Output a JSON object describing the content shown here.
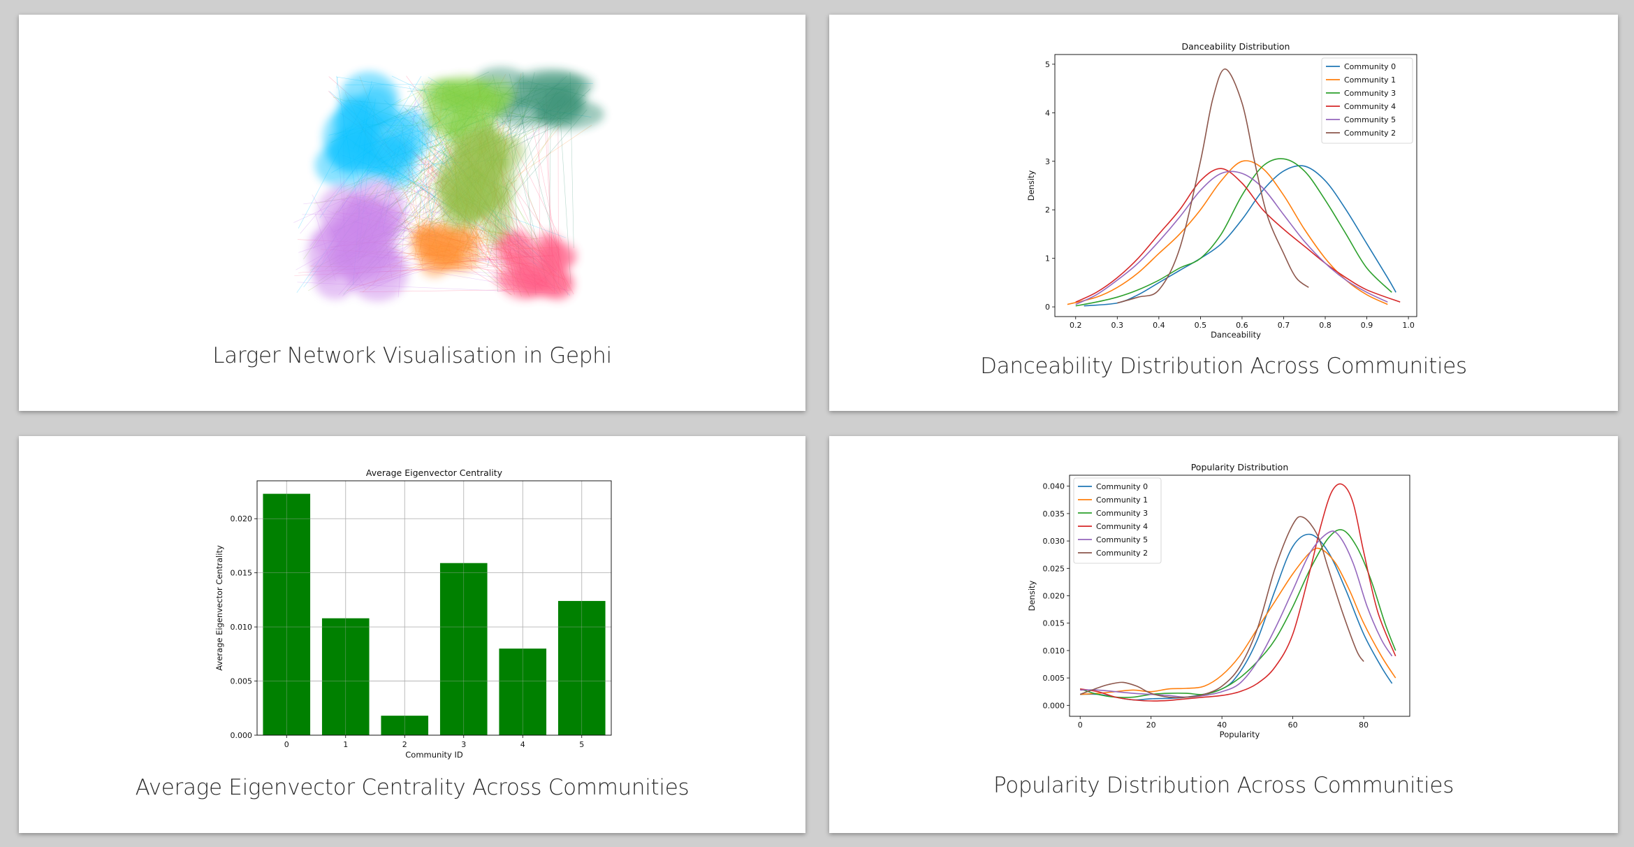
{
  "slides": {
    "network": {
      "caption": "Larger Network Visualisation in Gephi"
    },
    "danceability": {
      "caption": "Danceability Distribution Across Communities"
    },
    "eigen": {
      "caption": "Average Eigenvector Centrality Across Communities"
    },
    "popularity": {
      "caption": "Popularity Distribution Across Communities"
    }
  },
  "colors": {
    "c0": "#1f77b4",
    "c1": "#ff7f0e",
    "c3": "#2ca02c",
    "c4": "#d62728",
    "c5": "#9467bd",
    "c2": "#8c564b",
    "bar": "#008000"
  },
  "chart_data": [
    {
      "id": "danceability",
      "type": "line",
      "title": "Danceability Distribution",
      "xlabel": "Danceability",
      "ylabel": "Density",
      "xlim": [
        0.15,
        1.02
      ],
      "ylim": [
        -0.2,
        5.2
      ],
      "xticks": [
        0.2,
        0.3,
        0.4,
        0.5,
        0.6,
        0.7,
        0.8,
        0.9,
        1.0
      ],
      "xticklabels": [
        "0.2",
        "0.3",
        "0.4",
        "0.5",
        "0.6",
        "0.7",
        "0.8",
        "0.9",
        "1.0"
      ],
      "yticks": [
        0,
        1,
        2,
        3,
        4,
        5
      ],
      "yticklabels": [
        "0",
        "1",
        "2",
        "3",
        "4",
        "5"
      ],
      "grid": false,
      "legend_position": "top-right",
      "series": [
        {
          "name": "Community 0",
          "color": "#1f77b4",
          "x": [
            0.22,
            0.3,
            0.35,
            0.4,
            0.45,
            0.5,
            0.55,
            0.6,
            0.65,
            0.7,
            0.75,
            0.8,
            0.85,
            0.9,
            0.95,
            0.97
          ],
          "y": [
            0.02,
            0.08,
            0.25,
            0.5,
            0.75,
            1.0,
            1.3,
            1.8,
            2.4,
            2.8,
            2.9,
            2.6,
            2.0,
            1.3,
            0.6,
            0.3
          ]
        },
        {
          "name": "Community 1",
          "color": "#ff7f0e",
          "x": [
            0.18,
            0.25,
            0.3,
            0.35,
            0.4,
            0.45,
            0.5,
            0.55,
            0.6,
            0.65,
            0.7,
            0.75,
            0.8,
            0.85,
            0.9,
            0.95
          ],
          "y": [
            0.05,
            0.2,
            0.4,
            0.7,
            1.1,
            1.5,
            2.0,
            2.6,
            3.0,
            2.85,
            2.3,
            1.6,
            1.0,
            0.55,
            0.25,
            0.05
          ]
        },
        {
          "name": "Community 3",
          "color": "#2ca02c",
          "x": [
            0.2,
            0.25,
            0.3,
            0.35,
            0.4,
            0.45,
            0.5,
            0.55,
            0.6,
            0.65,
            0.7,
            0.75,
            0.8,
            0.85,
            0.9,
            0.96
          ],
          "y": [
            0.02,
            0.1,
            0.2,
            0.35,
            0.55,
            0.8,
            1.0,
            1.5,
            2.3,
            2.9,
            3.05,
            2.8,
            2.2,
            1.5,
            0.8,
            0.3
          ]
        },
        {
          "name": "Community 4",
          "color": "#d62728",
          "x": [
            0.2,
            0.25,
            0.3,
            0.35,
            0.4,
            0.45,
            0.5,
            0.55,
            0.6,
            0.65,
            0.7,
            0.75,
            0.8,
            0.85,
            0.9,
            0.98
          ],
          "y": [
            0.1,
            0.3,
            0.6,
            1.0,
            1.5,
            2.0,
            2.6,
            2.85,
            2.55,
            2.0,
            1.6,
            1.25,
            0.9,
            0.6,
            0.35,
            0.1
          ]
        },
        {
          "name": "Community 5",
          "color": "#9467bd",
          "x": [
            0.2,
            0.25,
            0.3,
            0.35,
            0.4,
            0.45,
            0.5,
            0.55,
            0.6,
            0.65,
            0.7,
            0.75,
            0.8,
            0.85,
            0.9,
            0.95
          ],
          "y": [
            0.05,
            0.25,
            0.55,
            0.9,
            1.35,
            1.85,
            2.4,
            2.75,
            2.75,
            2.45,
            1.9,
            1.35,
            0.9,
            0.55,
            0.3,
            0.1
          ]
        },
        {
          "name": "Community 2",
          "color": "#8c564b",
          "x": [
            0.3,
            0.35,
            0.4,
            0.45,
            0.5,
            0.53,
            0.56,
            0.6,
            0.63,
            0.66,
            0.7,
            0.73,
            0.76
          ],
          "y": [
            0.08,
            0.2,
            0.35,
            1.2,
            3.0,
            4.3,
            4.9,
            4.2,
            3.0,
            1.9,
            1.1,
            0.6,
            0.4
          ]
        }
      ]
    },
    {
      "id": "eigen",
      "type": "bar",
      "title": "Average Eigenvector Centrality",
      "xlabel": "Community ID",
      "ylabel": "Average Eigenvector Centrality",
      "categories": [
        "0",
        "1",
        "2",
        "3",
        "4",
        "5"
      ],
      "values": [
        0.0223,
        0.0108,
        0.0018,
        0.0159,
        0.008,
        0.0124
      ],
      "ylim": [
        0,
        0.0235
      ],
      "yticks": [
        0,
        0.005,
        0.01,
        0.015,
        0.02
      ],
      "yticklabels": [
        "0.000",
        "0.005",
        "0.010",
        "0.015",
        "0.020"
      ],
      "grid": true
    },
    {
      "id": "popularity",
      "type": "line",
      "title": "Popularity Distribution",
      "xlabel": "Popularity",
      "ylabel": "Density",
      "xlim": [
        -3,
        93
      ],
      "ylim": [
        -0.002,
        0.042
      ],
      "xticks": [
        0,
        20,
        40,
        60,
        80
      ],
      "xticklabels": [
        "0",
        "20",
        "40",
        "60",
        "80"
      ],
      "yticks": [
        0,
        0.005,
        0.01,
        0.015,
        0.02,
        0.025,
        0.03,
        0.035,
        0.04
      ],
      "yticklabels": [
        "0.000",
        "0.005",
        "0.010",
        "0.015",
        "0.020",
        "0.025",
        "0.030",
        "0.035",
        "0.040"
      ],
      "grid": false,
      "legend_position": "top-left",
      "series": [
        {
          "name": "Community 0",
          "color": "#1f77b4",
          "x": [
            0,
            5,
            10,
            15,
            20,
            30,
            40,
            45,
            50,
            55,
            60,
            65,
            70,
            75,
            80,
            85,
            88
          ],
          "y": [
            0.002,
            0.002,
            0.0015,
            0.001,
            0.0012,
            0.0015,
            0.003,
            0.006,
            0.012,
            0.021,
            0.029,
            0.0312,
            0.028,
            0.021,
            0.013,
            0.007,
            0.004
          ]
        },
        {
          "name": "Community 1",
          "color": "#ff7f0e",
          "x": [
            0,
            5,
            10,
            15,
            20,
            25,
            30,
            35,
            40,
            45,
            50,
            55,
            60,
            65,
            68,
            72,
            76,
            80,
            85,
            89
          ],
          "y": [
            0.002,
            0.0022,
            0.0025,
            0.0028,
            0.0025,
            0.003,
            0.0031,
            0.0035,
            0.0055,
            0.009,
            0.014,
            0.019,
            0.024,
            0.028,
            0.0285,
            0.026,
            0.021,
            0.015,
            0.009,
            0.005
          ]
        },
        {
          "name": "Community 3",
          "color": "#2ca02c",
          "x": [
            0,
            5,
            10,
            15,
            20,
            25,
            30,
            35,
            40,
            45,
            50,
            55,
            60,
            65,
            70,
            74,
            78,
            82,
            86,
            89
          ],
          "y": [
            0.003,
            0.002,
            0.0015,
            0.0015,
            0.002,
            0.0022,
            0.0022,
            0.002,
            0.003,
            0.005,
            0.008,
            0.012,
            0.018,
            0.025,
            0.0305,
            0.032,
            0.029,
            0.023,
            0.015,
            0.01
          ]
        },
        {
          "name": "Community 4",
          "color": "#d62728",
          "x": [
            0,
            5,
            10,
            15,
            20,
            25,
            30,
            35,
            40,
            45,
            50,
            55,
            60,
            65,
            68,
            71,
            74,
            77,
            80,
            84,
            89
          ],
          "y": [
            0.003,
            0.0025,
            0.0015,
            0.001,
            0.0008,
            0.0009,
            0.0012,
            0.0015,
            0.0018,
            0.0025,
            0.004,
            0.007,
            0.013,
            0.025,
            0.033,
            0.039,
            0.0403,
            0.037,
            0.028,
            0.017,
            0.009
          ]
        },
        {
          "name": "Community 5",
          "color": "#9467bd",
          "x": [
            0,
            5,
            10,
            15,
            20,
            25,
            30,
            35,
            40,
            45,
            50,
            55,
            60,
            65,
            70,
            73,
            77,
            81,
            85,
            88
          ],
          "y": [
            0.0028,
            0.0028,
            0.0025,
            0.0022,
            0.002,
            0.0018,
            0.0015,
            0.0018,
            0.0025,
            0.004,
            0.008,
            0.014,
            0.021,
            0.028,
            0.0315,
            0.031,
            0.026,
            0.018,
            0.012,
            0.009
          ]
        },
        {
          "name": "Community 2",
          "color": "#8c564b",
          "x": [
            0,
            5,
            8,
            12,
            16,
            20,
            25,
            30,
            35,
            40,
            45,
            50,
            55,
            60,
            63,
            67,
            70,
            74,
            78,
            80
          ],
          "y": [
            0.002,
            0.0032,
            0.0038,
            0.0042,
            0.0035,
            0.0022,
            0.0015,
            0.0015,
            0.002,
            0.0035,
            0.007,
            0.014,
            0.025,
            0.033,
            0.0343,
            0.031,
            0.025,
            0.017,
            0.01,
            0.008
          ]
        }
      ]
    }
  ]
}
